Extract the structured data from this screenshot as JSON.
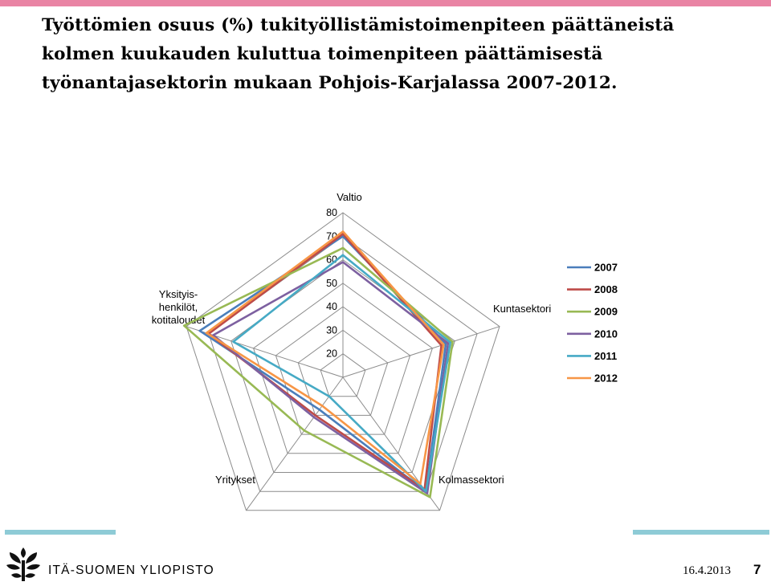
{
  "slide": {
    "title": "Työttömien osuus (%) tukityöllistämistoimenpiteen päättäneistä kolmen kuukauden kuluttua toimenpiteen päättämisestä työnantajasektorin mukaan Pohjois-Karjalassa 2007-2012.",
    "footer": {
      "organization": "ITÄ-SUOMEN YLIOPISTO",
      "date": "16.4.2013",
      "page": "7"
    },
    "colors": {
      "top_bar": "#e984a4",
      "deco_bar": "#8ecbd6"
    }
  },
  "chart_data": {
    "type": "radar",
    "title": "",
    "axes": [
      "Valtio",
      "Kuntasektori",
      "Kolmassektori",
      "Yritykset",
      "Yksityis-henkilöt, kotitaloudet"
    ],
    "axis_label_lines": [
      [
        "Valtio"
      ],
      [
        "Kuntasektori"
      ],
      [
        "Kolmassektori"
      ],
      [
        "Yritykset"
      ],
      [
        "Yksityis-",
        "henkilöt,",
        "kotitaloudet"
      ]
    ],
    "r_range": [
      10,
      80
    ],
    "ticks": [
      20,
      30,
      40,
      50,
      60,
      70,
      80
    ],
    "grid": true,
    "legend_position": "right",
    "series": [
      {
        "name": "2007",
        "color": "#4a7ebb",
        "values": [
          70,
          56,
          70,
          27,
          74
        ]
      },
      {
        "name": "2008",
        "color": "#be4b48",
        "values": [
          71,
          54,
          69,
          30,
          70
        ]
      },
      {
        "name": "2009",
        "color": "#98b954",
        "values": [
          65,
          59,
          73,
          38,
          81
        ]
      },
      {
        "name": "2010",
        "color": "#7d60a0",
        "values": [
          59,
          57,
          71,
          31,
          68
        ]
      },
      {
        "name": "2011",
        "color": "#46aac5",
        "values": [
          62,
          58,
          70,
          20,
          59
        ]
      },
      {
        "name": "2012",
        "color": "#f79646",
        "values": [
          72,
          55,
          66,
          25,
          71
        ]
      }
    ]
  }
}
